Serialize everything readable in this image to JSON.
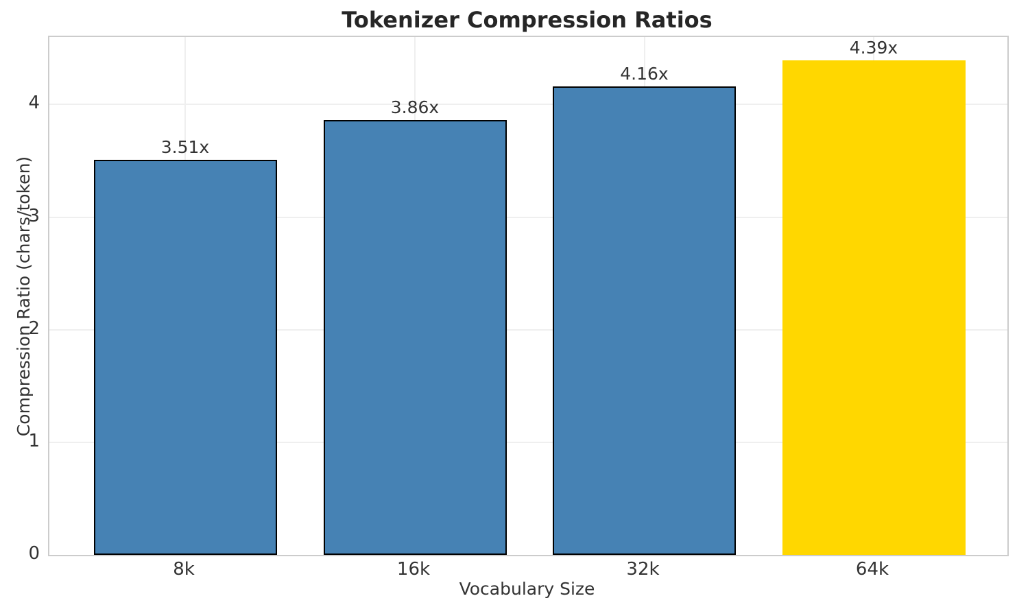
{
  "chart_data": {
    "type": "bar",
    "title": "Tokenizer Compression Ratios",
    "xlabel": "Vocabulary Size",
    "ylabel": "Compression Ratio (chars/token)",
    "categories": [
      "8k",
      "16k",
      "32k",
      "64k"
    ],
    "values": [
      3.51,
      3.86,
      4.16,
      4.39
    ],
    "value_labels": [
      "3.51x",
      "3.86x",
      "4.16x",
      "4.39x"
    ],
    "yticks": [
      0,
      1,
      2,
      3,
      4
    ],
    "ylim": [
      0,
      4.6
    ],
    "grid": true,
    "legend": "none",
    "bar_colors": [
      "#4682B4",
      "#4682B4",
      "#4682B4",
      "#FFD700"
    ],
    "bar_edge_colors": [
      "#000000",
      "#000000",
      "#000000",
      "none"
    ],
    "highlight_index": 3
  },
  "colors": {
    "background": "#ffffff",
    "spine": "#cccccc",
    "gridline": "#efefef",
    "tick_text": "#333333",
    "title_text": "#262626"
  }
}
